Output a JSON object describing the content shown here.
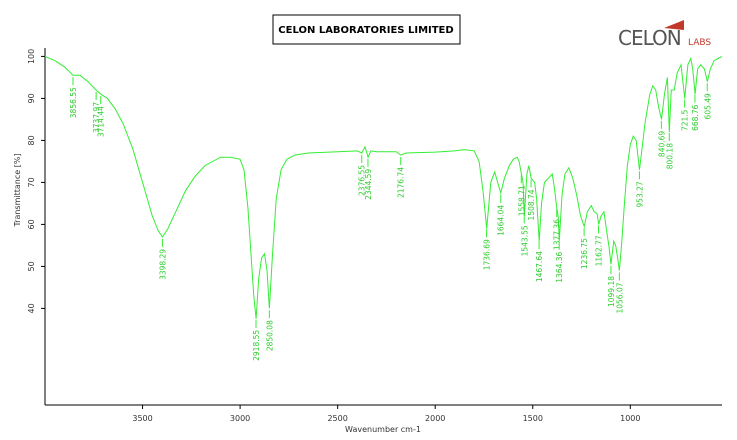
{
  "header": {
    "title": "CELON LABORATORIES LIMITED",
    "logo": "CELON",
    "logo_suffix": "LABS"
  },
  "chart_data": {
    "type": "line",
    "xlabel": "Wavenumber cm-1",
    "ylabel": "Transmittance [%]",
    "color": "#33ee33",
    "xlim": [
      4000,
      530
    ],
    "xticks": [
      3500,
      3000,
      2500,
      2000,
      1500,
      1000
    ],
    "ylim": [
      17,
      102
    ],
    "yticks": [
      40,
      50,
      60,
      70,
      80,
      90,
      100
    ],
    "x": [
      4000,
      3950,
      3900,
      3856,
      3820,
      3780,
      3738,
      3714,
      3680,
      3640,
      3600,
      3550,
      3500,
      3450,
      3420,
      3398,
      3370,
      3330,
      3280,
      3230,
      3180,
      3100,
      3050,
      3000,
      2980,
      2960,
      2940,
      2930,
      2918,
      2905,
      2890,
      2875,
      2862,
      2850,
      2835,
      2815,
      2790,
      2760,
      2720,
      2650,
      2500,
      2400,
      2376,
      2360,
      2344,
      2330,
      2300,
      2200,
      2176,
      2150,
      2000,
      1900,
      1850,
      1800,
      1775,
      1755,
      1736,
      1715,
      1695,
      1680,
      1664,
      1645,
      1620,
      1600,
      1580,
      1570,
      1558,
      1550,
      1543,
      1530,
      1520,
      1508,
      1490,
      1480,
      1467,
      1455,
      1440,
      1420,
      1400,
      1390,
      1377,
      1370,
      1364,
      1350,
      1335,
      1315,
      1295,
      1275,
      1255,
      1236,
      1220,
      1200,
      1185,
      1170,
      1162,
      1150,
      1135,
      1120,
      1110,
      1099,
      1085,
      1075,
      1065,
      1056,
      1045,
      1030,
      1015,
      1000,
      985,
      970,
      953,
      940,
      925,
      900,
      885,
      870,
      855,
      840,
      825,
      810,
      800,
      790,
      775,
      760,
      740,
      721,
      705,
      690,
      680,
      668,
      655,
      640,
      620,
      605,
      590,
      570,
      550,
      530
    ],
    "values": [
      100,
      99,
      97.5,
      95.5,
      95.5,
      94,
      92,
      91,
      90,
      87.5,
      84,
      78,
      70,
      62,
      58.5,
      57,
      59,
      63,
      68,
      71.5,
      74,
      76,
      76,
      75.5,
      73,
      64,
      50,
      43,
      37.5,
      47,
      52,
      53,
      49,
      40,
      52,
      66,
      73,
      75.5,
      76.5,
      77,
      77.3,
      77.5,
      77,
      78.5,
      76,
      77.5,
      77.3,
      77.3,
      76.5,
      77,
      77.2,
      77.5,
      77.8,
      77.5,
      75,
      68,
      59,
      70,
      72.5,
      70,
      67.5,
      71,
      74,
      75.5,
      76,
      75,
      72,
      70,
      62,
      72,
      74,
      71,
      70,
      66,
      56,
      65,
      70,
      71,
      72,
      69,
      64,
      62,
      56,
      67,
      72,
      73.5,
      71,
      67,
      62,
      59.5,
      63,
      64.5,
      63,
      62.5,
      60,
      62,
      63,
      58,
      55,
      50.5,
      56,
      55,
      52,
      49,
      55,
      65,
      74,
      79,
      81,
      80,
      73,
      78,
      84,
      91,
      93,
      92,
      88,
      85,
      91,
      95,
      82,
      92,
      92,
      96,
      98,
      90,
      98,
      99.5,
      97,
      91,
      97,
      98,
      97,
      94,
      97,
      99,
      99.5,
      100
    ],
    "peaks": [
      3856.55,
      3737.97,
      3714.44,
      3398.29,
      2918.55,
      2850.08,
      2376.55,
      2344.59,
      2176.74,
      1736.69,
      1664.04,
      1558.71,
      1543.55,
      1508.74,
      1467.64,
      1377.36,
      1364.36,
      1236.75,
      1162.77,
      1099.18,
      1056.07,
      953.27,
      840.69,
      800.18,
      721.5,
      668.76,
      605.49
    ]
  }
}
